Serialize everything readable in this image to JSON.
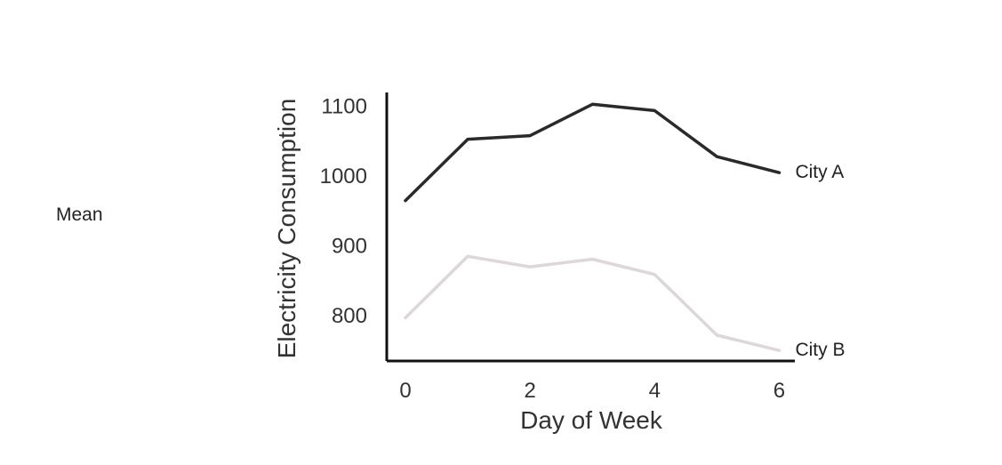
{
  "side_label": "Mean",
  "chart_data": {
    "type": "line",
    "title": "",
    "xlabel": "Day of Week",
    "ylabel": "Electricity Consumption",
    "x": [
      0,
      1,
      2,
      3,
      4,
      5,
      6
    ],
    "xticks": [
      0,
      2,
      4,
      6
    ],
    "yticks": [
      800,
      900,
      1000,
      1100
    ],
    "xlim": [
      -0.3,
      6.25
    ],
    "ylim": [
      735,
      1120
    ],
    "grid": false,
    "series": [
      {
        "name": "City A",
        "color": "#2a2a2a",
        "values": [
          965,
          1053,
          1058,
          1103,
          1094,
          1028,
          1005
        ]
      },
      {
        "name": "City B",
        "color": "#ddd6da",
        "values": [
          797,
          885,
          870,
          881,
          859,
          772,
          750
        ]
      }
    ]
  }
}
